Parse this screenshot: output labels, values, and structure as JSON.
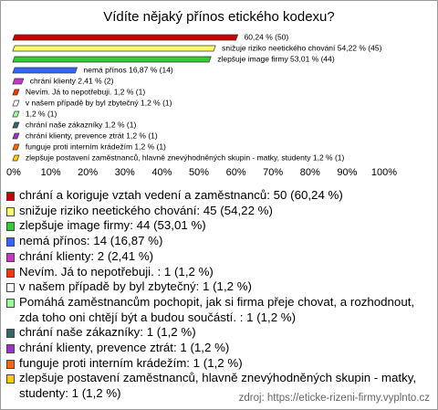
{
  "chart_data": {
    "type": "bar",
    "orientation": "horizontal",
    "title": "Vídíte nějaký přínos etického kodexu?",
    "values": [
      60.24,
      54.22,
      53.01,
      16.87,
      2.41,
      1.2,
      1.2,
      1.2,
      1.2,
      1.2,
      1.2,
      1.2
    ],
    "value_labels": [
      "60,24 % (50)",
      "snižuje riziko neetického chování 54,22 % (45)",
      "zlepšuje image firmy 53,01 % (44)",
      "nemá přínos 16,87 % (14)",
      "chrání klienty 2,41 % (2)",
      "Nevím. Já to nepotřebuji.  1,2 % (1)",
      "v našem případě by byl zbytečný 1,2 % (1)",
      "1,2 % (1)",
      "chrání naše zákazníky 1,2 % (1)",
      "chrání klienty, prevence ztrát 1,2 % (1)",
      "funguje proti interním krádežím 1,2 % (1)",
      "zlepšuje postavení zaměstnanců, hlavně znevýhodněných skupin - matky, studenty 1,2 % (1)"
    ],
    "colors": [
      "#cc0000",
      "#ffff66",
      "#33cc33",
      "#3366ff",
      "#cc33cc",
      "#ff3300",
      "#ffffff",
      "#99ff99",
      "#336666",
      "#9933cc",
      "#ff6600",
      "#ffcc00"
    ],
    "legend": [
      "chrání a koriguje vztah vedení a zaměstnanců: 50 (60,24 %)",
      "snižuje riziko neetického chování: 45 (54,22 %)",
      "zlepšuje image firmy: 44 (53,01 %)",
      "nemá přínos: 14 (16,87 %)",
      "chrání klienty: 2 (2,41 %)",
      "Nevím. Já to nepotřebuji. : 1 (1,2 %)",
      "v našem případě by byl zbytečný: 1 (1,2 %)",
      "Pomáhá zaměstnancům pochopit, jak si firma přeje chovat, a rozhodnout, zda toho oni chtějí být a budou součástí. : 1 (1,2 %)",
      "chrání naše zákazníky: 1 (1,2 %)",
      "chrání klienty, prevence ztrát: 1 (1,2 %)",
      "funguje proti interním krádežím: 1 (1,2 %)",
      "zlepšuje postavení zaměstnanců, hlavně znevýhodněných skupin - matky, studenty: 1 (1,2 %)"
    ],
    "xlim": [
      0,
      100
    ],
    "xticks": [
      {
        "value": 0,
        "label": "0%"
      },
      {
        "value": 10,
        "label": "10%"
      },
      {
        "value": 20,
        "label": "20%"
      },
      {
        "value": 30,
        "label": "30%"
      },
      {
        "value": 40,
        "label": "40%"
      },
      {
        "value": 50,
        "label": "50%"
      },
      {
        "value": 60,
        "label": "60%"
      },
      {
        "value": 70,
        "label": "70%"
      },
      {
        "value": 80,
        "label": "80%"
      },
      {
        "value": 90,
        "label": "90%"
      },
      {
        "value": 100,
        "label": "100%"
      }
    ],
    "source": "zdroj: https://eticke-rizeni-firmy.vyplnto.cz"
  }
}
